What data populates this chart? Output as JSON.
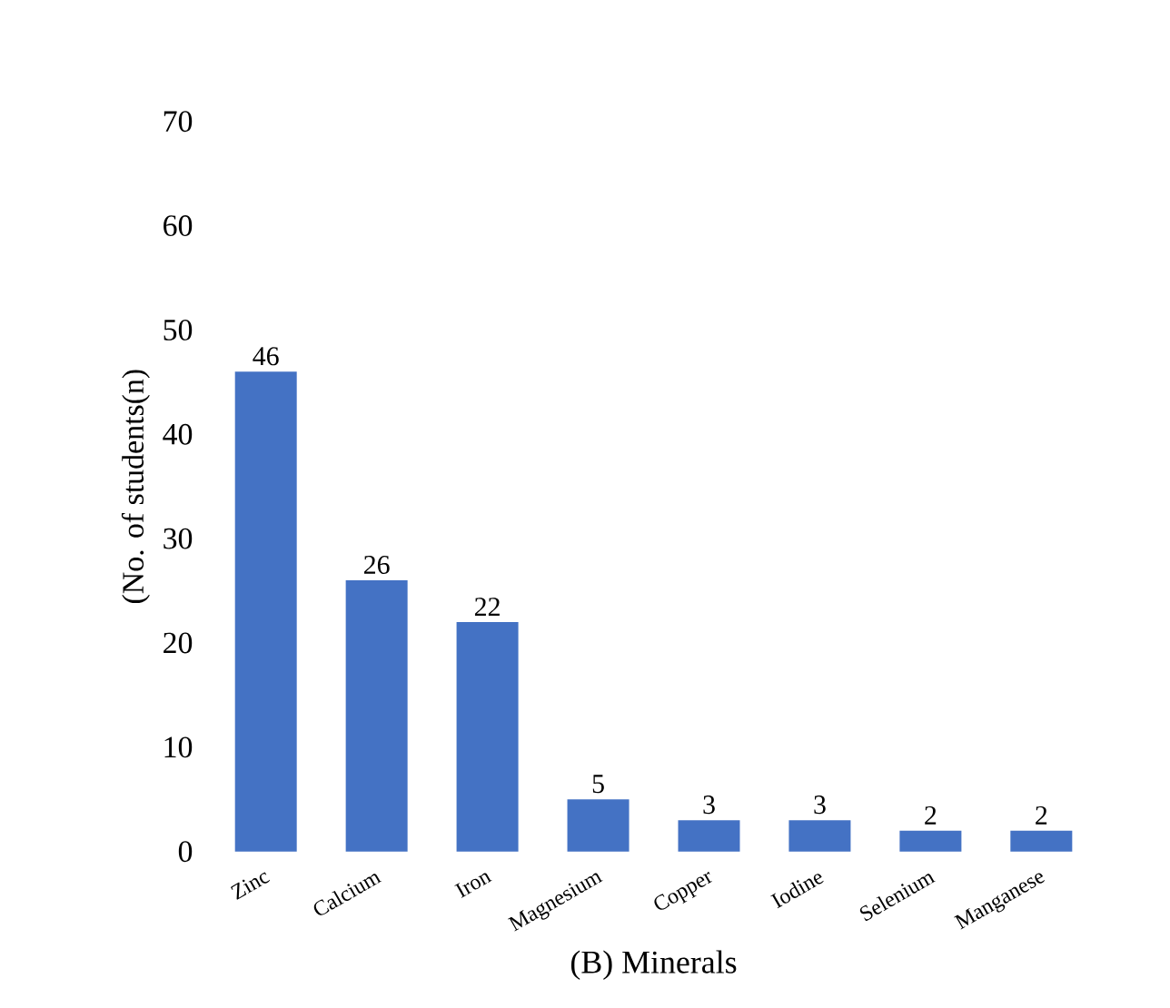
{
  "chart_data": {
    "type": "bar",
    "xlabel": "(B) Minerals",
    "ylabel": "(No. of students(n)",
    "categories": [
      "Zinc",
      "Calcium",
      "Iron",
      "Magnesium",
      "Copper",
      "Iodine",
      "Selenium",
      "Manganese"
    ],
    "values": [
      46,
      26,
      22,
      5,
      3,
      3,
      2,
      2
    ],
    "color": "#4472c4",
    "ylim": [
      0,
      70
    ],
    "yticks": [
      0,
      10,
      20,
      30,
      40,
      50,
      60,
      70
    ],
    "data_labels": true
  }
}
